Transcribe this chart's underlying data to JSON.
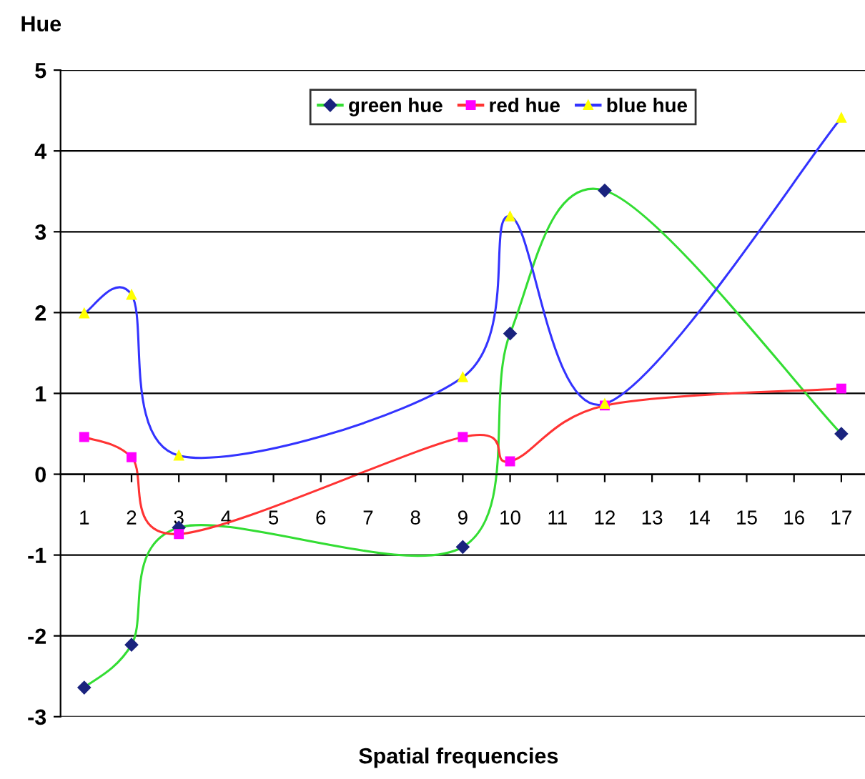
{
  "chart_data": {
    "type": "line",
    "ylabel": "Hue",
    "xlabel": "Spatial frequencies",
    "x": [
      1,
      2,
      3,
      9,
      10,
      12,
      17
    ],
    "xlim": [
      0.5,
      17.5
    ],
    "xticks": [
      1,
      2,
      3,
      4,
      5,
      6,
      7,
      8,
      9,
      10,
      11,
      12,
      13,
      14,
      15,
      16,
      17
    ],
    "ylim": [
      -3,
      5
    ],
    "yticks": [
      -3,
      -2,
      -1,
      0,
      1,
      2,
      3,
      4,
      5
    ],
    "grid": "y",
    "legend": "top",
    "line_style": "solid",
    "series": [
      {
        "name": "green hue",
        "color": "#33dd33",
        "colors": [
          "#1a237e",
          "#1a237e",
          "#1a237e",
          "#1a237e",
          "#1a237e",
          "#1a237e",
          "#1a237e"
        ],
        "marker": "diamond",
        "values": [
          -2.64,
          -2.11,
          -0.66,
          -0.9,
          1.74,
          3.51,
          0.5
        ]
      },
      {
        "name": "red hue",
        "color": "#ff3333",
        "colors": [
          "#ff00ff",
          "#ff00ff",
          "#ff00ff",
          "#ff00ff",
          "#ff00ff",
          "#ff00ff",
          "#ff00ff"
        ],
        "marker": "square",
        "values": [
          0.46,
          0.21,
          -0.74,
          0.46,
          0.16,
          0.85,
          1.06
        ]
      },
      {
        "name": "blue hue",
        "color": "#3333ff",
        "colors": [
          "#ffff00",
          "#ffff00",
          "#ffff00",
          "#ffff00",
          "#ffff00",
          "#ffff00",
          "#ffff00"
        ],
        "marker": "triangle",
        "values": [
          1.99,
          2.22,
          0.23,
          1.2,
          3.19,
          0.87,
          4.41
        ]
      }
    ]
  }
}
